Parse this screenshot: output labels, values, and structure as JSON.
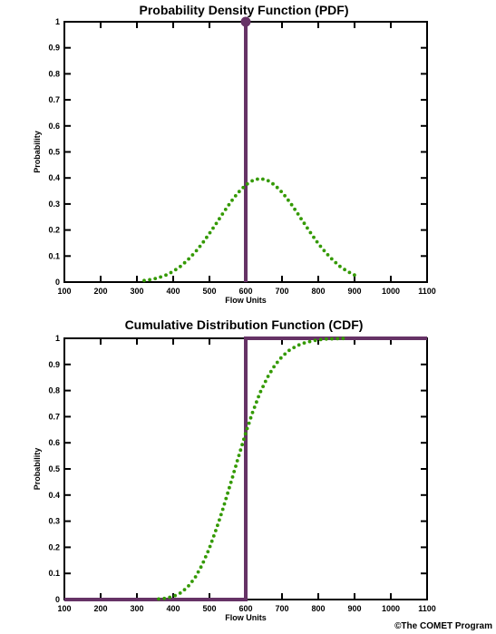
{
  "chart_data": [
    {
      "type": "line",
      "title": "Probability Density Function (PDF)",
      "xlabel": "Flow Units",
      "ylabel": "Probability",
      "xlim": [
        100,
        1100
      ],
      "ylim": [
        0,
        1
      ],
      "x_ticks": [
        "100",
        "200",
        "300",
        "400",
        "500",
        "600",
        "700",
        "800",
        "900",
        "1000",
        "1100"
      ],
      "y_ticks": [
        "0",
        "0.1",
        "0.2",
        "0.3",
        "0.4",
        "0.5",
        "0.6",
        "0.7",
        "0.8",
        "0.9",
        "1"
      ],
      "grid": false,
      "colors": {
        "deterministic": "#663366",
        "probabilistic": "#339900"
      },
      "series": [
        {
          "style": "solid",
          "color": "#663366",
          "x": [
            600,
            600
          ],
          "y": [
            0,
            1
          ],
          "marker": {
            "x": 600,
            "y": 1
          }
        },
        {
          "style": "dotted",
          "color": "#339900",
          "x": [
            320,
            340,
            360,
            380,
            400,
            420,
            440,
            460,
            480,
            500,
            520,
            540,
            560,
            580,
            600,
            620,
            640,
            660,
            680,
            700,
            720,
            740,
            760,
            780,
            800,
            820,
            840,
            860,
            880,
            900
          ],
          "y": [
            0.006,
            0.01,
            0.017,
            0.027,
            0.041,
            0.06,
            0.085,
            0.114,
            0.148,
            0.187,
            0.228,
            0.27,
            0.31,
            0.345,
            0.373,
            0.391,
            0.398,
            0.391,
            0.373,
            0.345,
            0.31,
            0.27,
            0.228,
            0.187,
            0.148,
            0.114,
            0.085,
            0.06,
            0.041,
            0.027
          ]
        }
      ]
    },
    {
      "type": "line",
      "title": "Cumulative Distribution Function (CDF)",
      "xlabel": "Flow Units",
      "ylabel": "Probability",
      "xlim": [
        100,
        1100
      ],
      "ylim": [
        0,
        1
      ],
      "x_ticks": [
        "100",
        "200",
        "300",
        "400",
        "500",
        "600",
        "700",
        "800",
        "900",
        "1000",
        "1100"
      ],
      "y_ticks": [
        "0",
        "0.1",
        "0.2",
        "0.3",
        "0.4",
        "0.5",
        "0.6",
        "0.7",
        "0.8",
        "0.9",
        "1"
      ],
      "grid": false,
      "colors": {
        "deterministic": "#663366",
        "probabilistic": "#339900"
      },
      "series": [
        {
          "style": "solid",
          "color": "#663366",
          "x": [
            100,
            600,
            600,
            1100
          ],
          "y": [
            0,
            0,
            1,
            1
          ]
        },
        {
          "style": "dotted",
          "color": "#339900",
          "x": [
            360,
            380,
            400,
            420,
            440,
            460,
            480,
            500,
            520,
            540,
            560,
            580,
            600,
            620,
            640,
            660,
            680,
            700,
            720,
            740,
            760,
            780,
            800,
            820,
            840,
            860,
            880
          ],
          "y": [
            0.002,
            0.005,
            0.012,
            0.025,
            0.048,
            0.083,
            0.133,
            0.197,
            0.274,
            0.36,
            0.452,
            0.546,
            0.638,
            0.721,
            0.793,
            0.851,
            0.896,
            0.93,
            0.954,
            0.971,
            0.982,
            0.989,
            0.994,
            0.997,
            0.998,
            0.999,
            1.0
          ]
        }
      ]
    }
  ],
  "credit": "©The COMET Program"
}
